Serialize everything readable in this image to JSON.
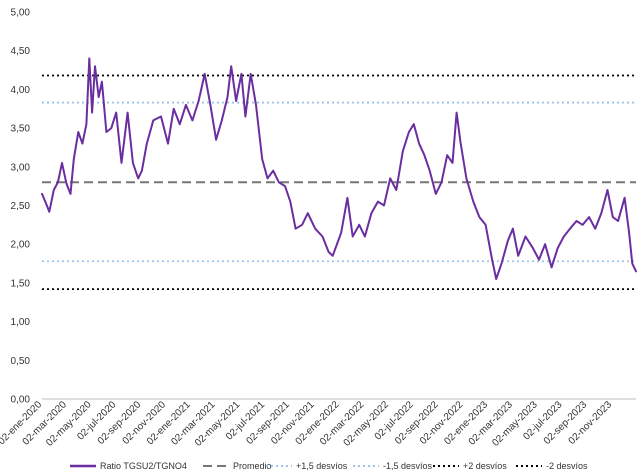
{
  "chart_data": {
    "type": "line",
    "title": "",
    "xlabel": "",
    "ylabel": "",
    "ylim": [
      0,
      5
    ],
    "y_ticks": [
      "0,00",
      "0,50",
      "1,00",
      "1,50",
      "2,00",
      "2,50",
      "3,00",
      "3,50",
      "4,00",
      "4,50",
      "5,00"
    ],
    "x_range": [
      "2020-01-02",
      "2023-12-29"
    ],
    "x_tick_labels": [
      "02-ene-2020",
      "02-mar-2020",
      "02-may-2020",
      "02-jul-2020",
      "02-sep-2020",
      "02-nov-2020",
      "02-ene-2021",
      "02-mar-2021",
      "02-may-2021",
      "02-jul-2021",
      "02-sep-2021",
      "02-nov-2021",
      "02-ene-2022",
      "02-mar-2022",
      "02-may-2022",
      "02-jul-2022",
      "02-sep-2022",
      "02-nov-2022",
      "02-ene-2023",
      "02-mar-2023",
      "02-may-2023",
      "02-jul-2023",
      "02-sep-2023",
      "02-nov-2023"
    ],
    "grid": false,
    "legend_position": "bottom",
    "series": [
      {
        "name": "Ratio TGSU2/TGNO4",
        "color": "#6a2ea0",
        "points": [
          [
            "2020-01-02",
            2.65
          ],
          [
            "2020-01-10",
            2.55
          ],
          [
            "2020-01-20",
            2.42
          ],
          [
            "2020-01-31",
            2.7
          ],
          [
            "2020-02-10",
            2.8
          ],
          [
            "2020-02-20",
            3.05
          ],
          [
            "2020-03-02",
            2.78
          ],
          [
            "2020-03-12",
            2.65
          ],
          [
            "2020-03-20",
            3.1
          ],
          [
            "2020-03-31",
            3.45
          ],
          [
            "2020-04-10",
            3.3
          ],
          [
            "2020-04-20",
            3.55
          ],
          [
            "2020-04-27",
            4.4
          ],
          [
            "2020-05-04",
            3.7
          ],
          [
            "2020-05-11",
            4.3
          ],
          [
            "2020-05-20",
            3.9
          ],
          [
            "2020-05-28",
            4.1
          ],
          [
            "2020-06-08",
            3.45
          ],
          [
            "2020-06-20",
            3.5
          ],
          [
            "2020-07-02",
            3.7
          ],
          [
            "2020-07-15",
            3.05
          ],
          [
            "2020-07-30",
            3.7
          ],
          [
            "2020-08-12",
            3.05
          ],
          [
            "2020-08-25",
            2.85
          ],
          [
            "2020-09-03",
            2.95
          ],
          [
            "2020-09-15",
            3.3
          ],
          [
            "2020-10-01",
            3.6
          ],
          [
            "2020-10-20",
            3.65
          ],
          [
            "2020-11-06",
            3.3
          ],
          [
            "2020-11-20",
            3.75
          ],
          [
            "2020-12-05",
            3.55
          ],
          [
            "2020-12-20",
            3.8
          ],
          [
            "2021-01-05",
            3.6
          ],
          [
            "2021-01-20",
            3.85
          ],
          [
            "2021-02-04",
            4.2
          ],
          [
            "2021-02-18",
            3.8
          ],
          [
            "2021-03-04",
            3.35
          ],
          [
            "2021-03-18",
            3.6
          ],
          [
            "2021-04-01",
            3.9
          ],
          [
            "2021-04-10",
            4.3
          ],
          [
            "2021-04-22",
            3.85
          ],
          [
            "2021-05-05",
            4.2
          ],
          [
            "2021-05-15",
            3.65
          ],
          [
            "2021-05-28",
            4.2
          ],
          [
            "2021-06-10",
            3.8
          ],
          [
            "2021-06-25",
            3.1
          ],
          [
            "2021-07-08",
            2.85
          ],
          [
            "2021-07-22",
            2.95
          ],
          [
            "2021-08-05",
            2.8
          ],
          [
            "2021-08-20",
            2.75
          ],
          [
            "2021-09-02",
            2.55
          ],
          [
            "2021-09-15",
            2.2
          ],
          [
            "2021-10-01",
            2.25
          ],
          [
            "2021-10-15",
            2.4
          ],
          [
            "2021-11-02",
            2.2
          ],
          [
            "2021-11-20",
            2.1
          ],
          [
            "2021-12-05",
            1.9
          ],
          [
            "2021-12-15",
            1.85
          ],
          [
            "2022-01-05",
            2.15
          ],
          [
            "2022-01-20",
            2.6
          ],
          [
            "2022-02-02",
            2.1
          ],
          [
            "2022-02-18",
            2.25
          ],
          [
            "2022-03-04",
            2.1
          ],
          [
            "2022-03-20",
            2.4
          ],
          [
            "2022-04-05",
            2.55
          ],
          [
            "2022-04-20",
            2.5
          ],
          [
            "2022-05-05",
            2.85
          ],
          [
            "2022-05-20",
            2.7
          ],
          [
            "2022-06-05",
            3.2
          ],
          [
            "2022-06-20",
            3.45
          ],
          [
            "2022-07-02",
            3.55
          ],
          [
            "2022-07-15",
            3.3
          ],
          [
            "2022-07-28",
            3.15
          ],
          [
            "2022-08-10",
            2.95
          ],
          [
            "2022-08-25",
            2.65
          ],
          [
            "2022-09-08",
            2.8
          ],
          [
            "2022-09-22",
            3.15
          ],
          [
            "2022-10-05",
            3.05
          ],
          [
            "2022-10-15",
            3.7
          ],
          [
            "2022-10-25",
            3.3
          ],
          [
            "2022-11-08",
            2.85
          ],
          [
            "2022-11-25",
            2.55
          ],
          [
            "2022-12-10",
            2.35
          ],
          [
            "2022-12-25",
            2.25
          ],
          [
            "2023-01-10",
            1.8
          ],
          [
            "2023-01-20",
            1.55
          ],
          [
            "2023-02-02",
            1.75
          ],
          [
            "2023-02-18",
            2.05
          ],
          [
            "2023-03-02",
            2.2
          ],
          [
            "2023-03-15",
            1.85
          ],
          [
            "2023-04-02",
            2.1
          ],
          [
            "2023-04-20",
            1.95
          ],
          [
            "2023-05-05",
            1.8
          ],
          [
            "2023-05-20",
            2.0
          ],
          [
            "2023-06-05",
            1.7
          ],
          [
            "2023-06-20",
            1.95
          ],
          [
            "2023-07-05",
            2.1
          ],
          [
            "2023-07-20",
            2.2
          ],
          [
            "2023-08-05",
            2.3
          ],
          [
            "2023-08-20",
            2.25
          ],
          [
            "2023-09-05",
            2.35
          ],
          [
            "2023-09-20",
            2.2
          ],
          [
            "2023-10-05",
            2.4
          ],
          [
            "2023-10-20",
            2.7
          ],
          [
            "2023-11-02",
            2.35
          ],
          [
            "2023-11-15",
            2.3
          ],
          [
            "2023-12-01",
            2.6
          ],
          [
            "2023-12-12",
            2.15
          ],
          [
            "2023-12-20",
            1.75
          ],
          [
            "2023-12-29",
            1.65
          ]
        ]
      },
      {
        "name": "Promedio",
        "value": 2.8,
        "color": "#767676",
        "style": "dashed"
      },
      {
        "name": "+1,5 desvíos",
        "value": 3.83,
        "color": "#9dc3e6",
        "style": "dotted"
      },
      {
        "name": "-1,5 desvíos",
        "value": 1.78,
        "color": "#9dc3e6",
        "style": "dotted"
      },
      {
        "name": "+2 desvíos",
        "value": 4.18,
        "color": "#000000",
        "style": "dotted"
      },
      {
        "name": "-2 desvíos",
        "value": 1.42,
        "color": "#000000",
        "style": "dotted"
      }
    ]
  }
}
